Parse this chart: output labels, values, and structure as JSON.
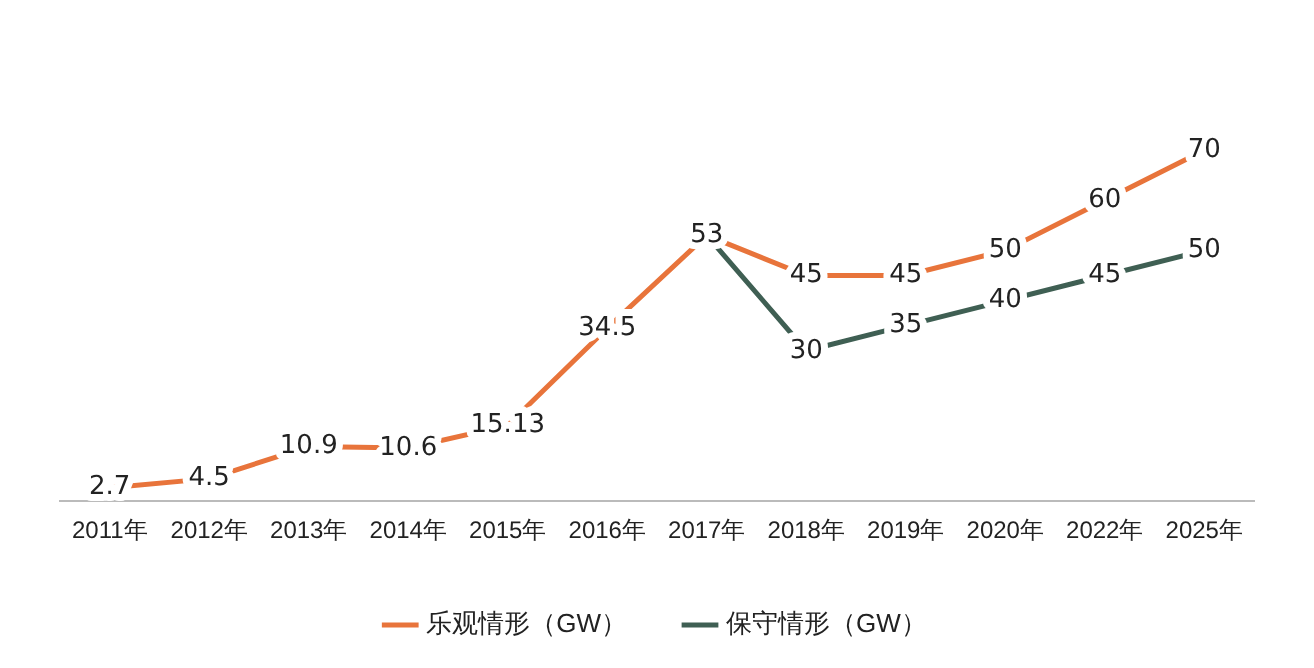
{
  "chart_data": {
    "type": "line",
    "categories": [
      "2011年",
      "2012年",
      "2013年",
      "2014年",
      "2015年",
      "2016年",
      "2017年",
      "2018年",
      "2019年",
      "2020年",
      "2022年",
      "2025年"
    ],
    "series": [
      {
        "name": "乐观情形（GW）",
        "color": "#e8743b",
        "values": [
          2.7,
          4.5,
          10.9,
          10.6,
          15.13,
          34.5,
          53,
          45,
          45,
          50,
          60,
          70
        ],
        "value_labels": [
          "2.7",
          "4.5",
          "10.9",
          "10.6",
          "15.13",
          "34.5",
          "53",
          "45",
          "45",
          "50",
          "60",
          "70"
        ]
      },
      {
        "name": "保守情形（GW）",
        "color": "#3f5f53",
        "values": [
          null,
          null,
          null,
          null,
          null,
          null,
          53,
          30,
          35,
          40,
          45,
          50
        ],
        "value_labels": [
          null,
          null,
          null,
          null,
          null,
          null,
          null,
          "30",
          "35",
          "40",
          "45",
          "50"
        ]
      }
    ],
    "legend": "bottom",
    "grid": false,
    "marker": "none",
    "line_style": "solid"
  }
}
